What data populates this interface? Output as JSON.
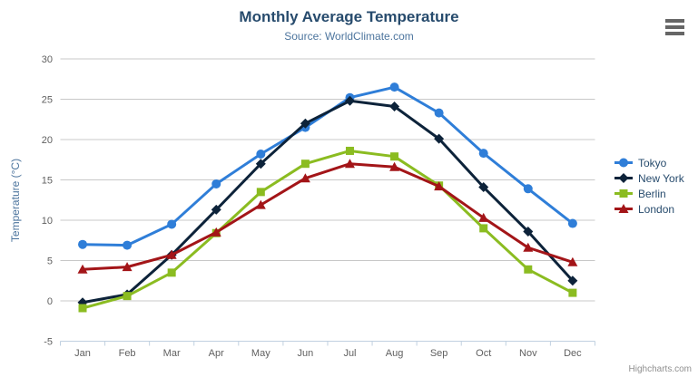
{
  "chart_data": {
    "type": "line",
    "title": "Monthly Average Temperature",
    "subtitle": "Source: WorldClimate.com",
    "xlabel": "",
    "ylabel": "Temperature (°C)",
    "ylim": [
      -5,
      30
    ],
    "yticks": [
      -5,
      0,
      5,
      10,
      15,
      20,
      25,
      30
    ],
    "grid": true,
    "legend_position": "right-middle",
    "categories": [
      "Jan",
      "Feb",
      "Mar",
      "Apr",
      "May",
      "Jun",
      "Jul",
      "Aug",
      "Sep",
      "Oct",
      "Nov",
      "Dec"
    ],
    "series": [
      {
        "name": "Tokyo",
        "color": "#2f7ed8",
        "marker": "circle",
        "values": [
          7.0,
          6.9,
          9.5,
          14.5,
          18.2,
          21.5,
          25.2,
          26.5,
          23.3,
          18.3,
          13.9,
          9.6
        ]
      },
      {
        "name": "New York",
        "color": "#0d233a",
        "marker": "diamond",
        "values": [
          -0.2,
          0.8,
          5.7,
          11.3,
          17.0,
          22.0,
          24.8,
          24.1,
          20.1,
          14.1,
          8.6,
          2.5
        ]
      },
      {
        "name": "Berlin",
        "color": "#8bbc21",
        "marker": "square",
        "values": [
          -0.9,
          0.6,
          3.5,
          8.4,
          13.5,
          17.0,
          18.6,
          17.9,
          14.3,
          9.0,
          3.9,
          1.0
        ]
      },
      {
        "name": "London",
        "color": "#a31518",
        "marker": "triangle",
        "values": [
          3.9,
          4.2,
          5.7,
          8.5,
          11.9,
          15.2,
          17.0,
          16.6,
          14.2,
          10.3,
          6.6,
          4.8
        ]
      }
    ],
    "colors": {
      "grid": "#c8c8c8",
      "axis_line": "#c0d0e0",
      "axis_label": "#606060",
      "axis_title": "#4d759e",
      "title": "#274b6d",
      "subtitle": "#4d759e",
      "legend_text": "#274b6d",
      "credits": "#909090",
      "menu_icon": "#666666"
    },
    "credits": "Highcharts.com"
  },
  "context_menu": {
    "icon": "hamburger-icon"
  }
}
